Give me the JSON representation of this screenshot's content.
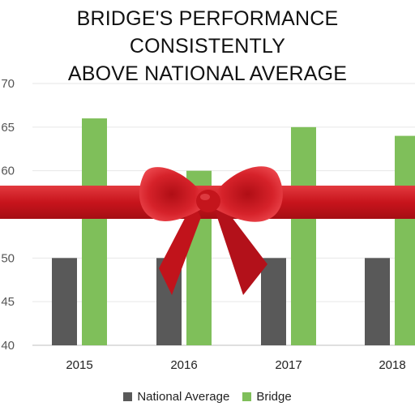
{
  "chart_data": {
    "type": "bar",
    "title": "BRIDGE'S PERFORMANCE CONSISTENTLY\nABOVE NATIONAL AVERAGE",
    "xlabel": "",
    "ylabel": "",
    "categories": [
      "2015",
      "2016",
      "2017",
      "2018"
    ],
    "series": [
      {
        "name": "National Average",
        "values": [
          50,
          50,
          50,
          50
        ],
        "color": "#595959"
      },
      {
        "name": "Bridge",
        "values": [
          66,
          60,
          65,
          64
        ],
        "color": "#7FBF5A"
      }
    ],
    "ylim": [
      40,
      70
    ],
    "yticks": [
      {
        "value": 40,
        "label": "40"
      },
      {
        "value": 45,
        "label": "45"
      },
      {
        "value": 50,
        "label": "50"
      },
      {
        "value": 55,
        "label": "55"
      },
      {
        "value": 60,
        "label": "60"
      },
      {
        "value": 65,
        "label": "65"
      },
      {
        "value": 70,
        "label": "70"
      }
    ],
    "grid": true,
    "legend": "bottom"
  },
  "decoration": {
    "icon": "gift-ribbon-bow-icon",
    "ribbon_color": "#D41F26"
  }
}
